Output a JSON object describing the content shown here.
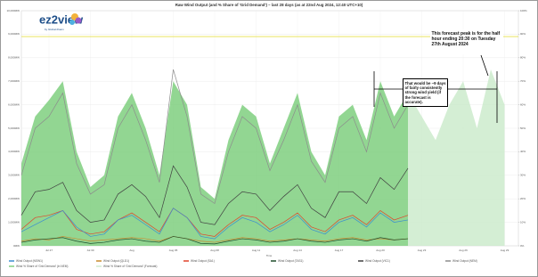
{
  "chart_data": {
    "type": "line",
    "title": "Raw Wind Output (and % Share of 'Grid Demand') – last 28 days (as at 22nd Aug 2024, 12:40 UTC+10)",
    "logo": "ez2view",
    "logo_sub": "by Global-Roam",
    "x_label": "Time",
    "x": [
      "2024-07-25",
      "2024-07-26",
      "2024-07-27",
      "2024-07-28",
      "2024-07-29",
      "2024-07-30",
      "2024-07-31",
      "2024-08-01",
      "2024-08-02",
      "2024-08-03",
      "2024-08-04",
      "2024-08-05",
      "2024-08-06",
      "2024-08-07",
      "2024-08-08",
      "2024-08-09",
      "2024-08-10",
      "2024-08-11",
      "2024-08-12",
      "2024-08-13",
      "2024-08-14",
      "2024-08-15",
      "2024-08-16",
      "2024-08-17",
      "2024-08-18",
      "2024-08-19",
      "2024-08-20",
      "2024-08-21",
      "2024-08-22",
      "2024-08-23",
      "2024-08-24",
      "2024-08-25",
      "2024-08-26",
      "2024-08-27",
      "2024-08-28",
      "2024-08-29"
    ],
    "xlim": [
      "2024-07-25",
      "2024-08-30"
    ],
    "xticks": [
      {
        "value": "2024-07-27",
        "label": "Jul 27"
      },
      {
        "value": "2024-07-30",
        "label": "Jul 30"
      },
      {
        "value": "2024-08-02",
        "label": "Aug"
      },
      {
        "value": "2024-08-05",
        "label": "Aug 05"
      },
      {
        "value": "2024-08-08",
        "label": "Aug 08"
      },
      {
        "value": "2024-08-11",
        "label": "Aug 11"
      },
      {
        "value": "2024-08-14",
        "label": "Aug 14"
      },
      {
        "value": "2024-08-17",
        "label": "Aug 17"
      },
      {
        "value": "2024-08-20",
        "label": "Aug 20"
      },
      {
        "value": "2024-08-23",
        "label": "Aug 23"
      },
      {
        "value": "2024-08-26",
        "label": "Aug 26"
      },
      {
        "value": "2024-08-29",
        "label": "Aug 29"
      }
    ],
    "ylim": [
      0,
      10000
    ],
    "yticks": [
      {
        "value": 0,
        "label": "0MW"
      },
      {
        "value": 1000,
        "label": "1,000MW"
      },
      {
        "value": 2000,
        "label": "2,000MW"
      },
      {
        "value": 3000,
        "label": "3,000MW"
      },
      {
        "value": 4000,
        "label": "4,000MW"
      },
      {
        "value": 5000,
        "label": "5,000MW"
      },
      {
        "value": 6000,
        "label": "6,000MW"
      },
      {
        "value": 7000,
        "label": "7,000MW"
      },
      {
        "value": 8000,
        "label": "8,000MW"
      },
      {
        "value": 9000,
        "label": "9,000MW"
      },
      {
        "value": 10000,
        "label": "10,000MW"
      }
    ],
    "y2lim": [
      0,
      100
    ],
    "y2ticks": [
      {
        "value": 0,
        "label": "0%"
      },
      {
        "value": 10,
        "label": "10%"
      },
      {
        "value": 20,
        "label": "20%"
      },
      {
        "value": 30,
        "label": "30%"
      },
      {
        "value": 40,
        "label": "40%"
      },
      {
        "value": 50,
        "label": "50%"
      },
      {
        "value": 60,
        "label": "60%"
      },
      {
        "value": 70,
        "label": "70%"
      },
      {
        "value": 80,
        "label": "80%"
      },
      {
        "value": 90,
        "label": "90%"
      },
      {
        "value": 100,
        "label": "100%"
      }
    ],
    "grid": true,
    "reference_lines": [
      {
        "axis": "y2",
        "value": 89,
        "color": "#e6e24a"
      }
    ],
    "series": [
      {
        "name": "Wind % Share of 'Grid Demand' (in NEM)",
        "kind": "area",
        "axis": "y2",
        "color": "#7fcf7f",
        "values": [
          35,
          55,
          62,
          70,
          40,
          25,
          30,
          55,
          65,
          50,
          30,
          70,
          60,
          25,
          20,
          45,
          60,
          55,
          35,
          50,
          65,
          40,
          30,
          55,
          60,
          45,
          70,
          55,
          65,
          null,
          null,
          null,
          null,
          null,
          null,
          null
        ]
      },
      {
        "name": "Wind % Share of 'Grid Demand' (Forecast)",
        "kind": "area",
        "axis": "y2",
        "color": "#cdebcd",
        "values": [
          null,
          null,
          null,
          null,
          null,
          null,
          null,
          null,
          null,
          null,
          null,
          null,
          null,
          null,
          null,
          null,
          null,
          null,
          null,
          null,
          null,
          null,
          null,
          null,
          null,
          null,
          null,
          null,
          65,
          55,
          45,
          60,
          70,
          50,
          75,
          60
        ]
      },
      {
        "name": "Wind Output (NEM)",
        "kind": "line",
        "color": "#8c8c8c",
        "values": [
          3000,
          5000,
          5500,
          6500,
          3500,
          2200,
          2600,
          5000,
          6000,
          4500,
          2700,
          7500,
          5500,
          2200,
          1800,
          4000,
          5500,
          5000,
          3200,
          4500,
          6000,
          3600,
          2700,
          5000,
          5500,
          4000,
          6500,
          5000,
          6000,
          null,
          null,
          null,
          null,
          null,
          null,
          null
        ]
      },
      {
        "name": "Wind Output (VIC1)",
        "kind": "line",
        "color": "#404040",
        "values": [
          1300,
          2300,
          2400,
          2700,
          1500,
          1000,
          1100,
          2200,
          2600,
          2100,
          1200,
          3400,
          2500,
          1000,
          900,
          1800,
          2300,
          2200,
          1500,
          2100,
          2600,
          1600,
          1200,
          2300,
          2300,
          1800,
          2900,
          2400,
          3300,
          null,
          null,
          null,
          null,
          null,
          null,
          null
        ]
      },
      {
        "name": "Wind Output (SA1)",
        "kind": "line",
        "color": "#e0442c",
        "values": [
          700,
          1200,
          1300,
          1500,
          700,
          500,
          600,
          1100,
          1400,
          1000,
          600,
          1600,
          1200,
          500,
          400,
          900,
          1300,
          1200,
          700,
          1000,
          1400,
          800,
          600,
          1100,
          1300,
          900,
          1500,
          1100,
          1300,
          null,
          null,
          null,
          null,
          null,
          null,
          null
        ]
      },
      {
        "name": "Wind Output (NSW1)",
        "kind": "line",
        "color": "#3a8ed0",
        "values": [
          600,
          900,
          1200,
          1500,
          800,
          400,
          500,
          1100,
          1300,
          900,
          500,
          1600,
          1200,
          400,
          300,
          800,
          1200,
          1000,
          600,
          900,
          1300,
          700,
          500,
          1000,
          1200,
          800,
          1400,
          1000,
          1100,
          null,
          null,
          null,
          null,
          null,
          null,
          null
        ]
      },
      {
        "name": "Wind Output (QLD1)",
        "kind": "line",
        "color": "#c98a2e",
        "values": [
          200,
          300,
          250,
          400,
          300,
          200,
          250,
          300,
          350,
          300,
          200,
          400,
          300,
          200,
          150,
          250,
          350,
          300,
          200,
          250,
          300,
          250,
          200,
          300,
          350,
          250,
          300,
          250,
          300,
          null,
          null,
          null,
          null,
          null,
          null,
          null
        ]
      },
      {
        "name": "Wind Output (TAS1)",
        "kind": "line",
        "color": "#1f4d2a",
        "values": [
          150,
          250,
          300,
          350,
          200,
          100,
          150,
          250,
          300,
          200,
          150,
          400,
          300,
          100,
          80,
          200,
          300,
          250,
          150,
          200,
          300,
          200,
          150,
          250,
          300,
          200,
          350,
          250,
          300,
          null,
          null,
          null,
          null,
          null,
          null,
          null
        ]
      }
    ],
    "annotations": [
      {
        "text": "That would be ~9 days of fairly consistently strong wind yield (if the forecast is accurate)."
      },
      {
        "text": "This forecast peak is for the half hour ending 20:30 on Tuesday 27th August 2024"
      }
    ]
  }
}
